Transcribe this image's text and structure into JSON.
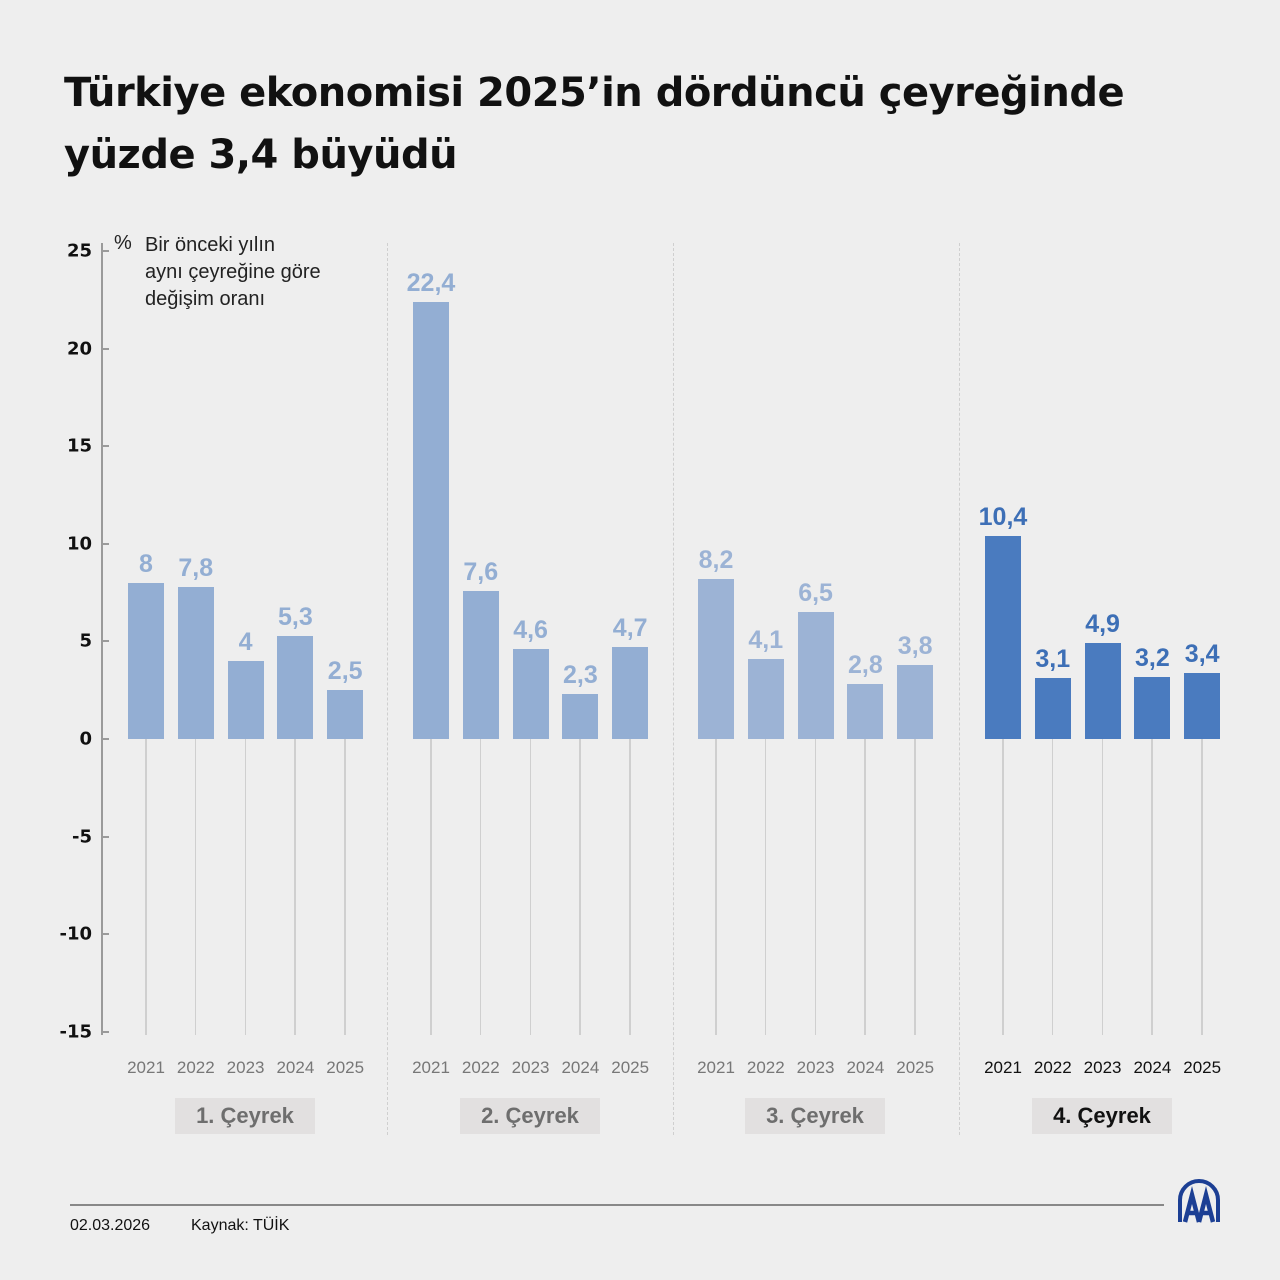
{
  "title": {
    "line1": "Türkiye ekonomisi 2025’in dördüncü çeyreğinde",
    "line2": "yüzde 3,4 büyüdü"
  },
  "note": {
    "unit": "%",
    "line1": "Bir önceki yılın",
    "line2": "aynı çeyreğine göre",
    "line3": "değişim oranı"
  },
  "y_ticks": [
    "25",
    "20",
    "15",
    "10",
    "5",
    "0",
    "-5",
    "-10",
    "-15"
  ],
  "groups": [
    {
      "label": "1. Çeyrek",
      "years": [
        "2021",
        "2022",
        "2023",
        "2024",
        "2025"
      ],
      "values": [
        "8",
        "7,8",
        "4",
        "5,3",
        "2,5"
      ],
      "color": "#93aed3"
    },
    {
      "label": "2. Çeyrek",
      "years": [
        "2021",
        "2022",
        "2023",
        "2024",
        "2025"
      ],
      "values": [
        "22,4",
        "7,6",
        "4,6",
        "2,3",
        "4,7"
      ],
      "color": "#93aed3"
    },
    {
      "label": "3. Çeyrek",
      "years": [
        "2021",
        "2022",
        "2023",
        "2024",
        "2025"
      ],
      "values": [
        "8,2",
        "4,1",
        "6,5",
        "2,8",
        "3,8"
      ],
      "color": "#9cb3d5"
    },
    {
      "label": "4. Çeyrek",
      "years": [
        "2021",
        "2022",
        "2023",
        "2024",
        "2025"
      ],
      "values": [
        "10,4",
        "3,1",
        "4,9",
        "3,2",
        "3,4"
      ],
      "color": "#4a7bbf"
    }
  ],
  "footer": {
    "date": "02.03.2026",
    "source": "Kaynak: TÜİK",
    "logo": "AA"
  },
  "colors": {
    "past_quarters_bar": "#93aed3",
    "highlight_quarter_bar": "#4a7bbf",
    "logo_blue": "#1c3f94"
  },
  "chart_data": {
    "type": "bar",
    "title": "Türkiye ekonomisi 2025’in dördüncü çeyreğinde yüzde 3,4 büyüdü",
    "ylabel": "% Bir önceki yılın aynı çeyreğine göre değişim oranı",
    "xlabel": "",
    "ylim": [
      -15,
      25
    ],
    "yticks": [
      25,
      20,
      15,
      10,
      5,
      0,
      -5,
      -10,
      -15
    ],
    "grid": false,
    "categories": [
      "1. Çeyrek",
      "2. Çeyrek",
      "3. Çeyrek",
      "4. Çeyrek"
    ],
    "series": [
      {
        "name": "2021",
        "values": [
          8.0,
          22.4,
          8.2,
          10.4
        ]
      },
      {
        "name": "2022",
        "values": [
          7.8,
          7.6,
          4.1,
          3.1
        ]
      },
      {
        "name": "2023",
        "values": [
          4.0,
          4.6,
          6.5,
          4.9
        ]
      },
      {
        "name": "2024",
        "values": [
          5.3,
          2.3,
          2.8,
          3.2
        ]
      },
      {
        "name": "2025",
        "values": [
          2.5,
          4.7,
          3.8,
          3.4
        ]
      }
    ],
    "highlight": "4. Çeyrek",
    "source": "Kaynak: TÜİK",
    "date": "02.03.2026"
  }
}
